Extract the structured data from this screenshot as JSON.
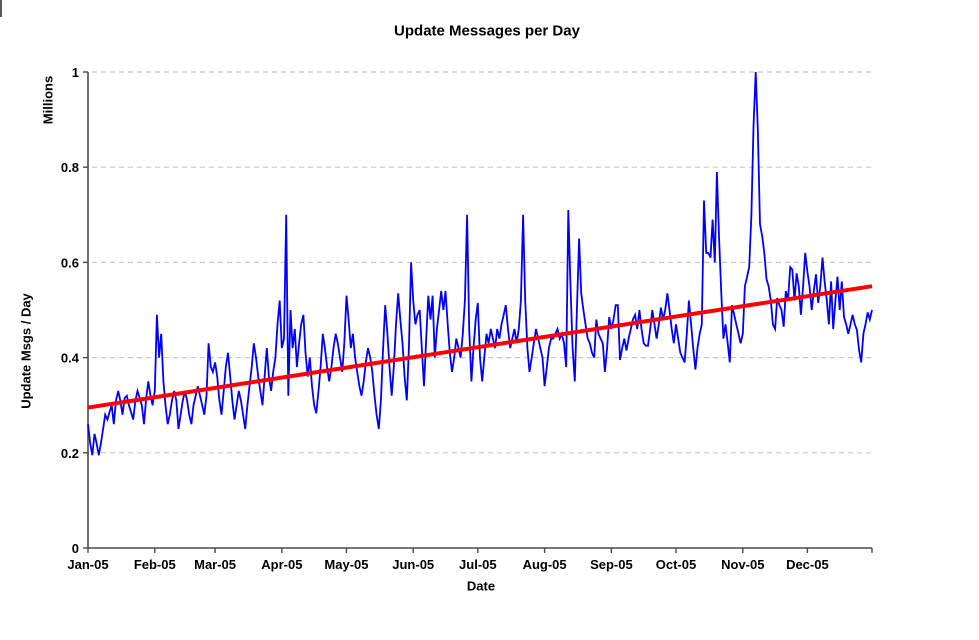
{
  "chart": {
    "title": "Update Messages per Day",
    "x_axis_title": "Date",
    "y_axis_title": "Update Msgs / Day",
    "y_units_label": "Millions",
    "colors": {
      "series_line": "#0000ff",
      "trend_line": "#ff0000",
      "gridline": "#c8c8c8",
      "axis": "#4a4a4a",
      "text": "#000000",
      "background": "#ffffff"
    }
  },
  "chart_data": {
    "type": "line",
    "title": "Update Messages per Day",
    "xlabel": "Date",
    "ylabel": "Update Msgs / Day",
    "y_units": "Millions",
    "ylim": [
      0,
      1
    ],
    "y_ticks": [
      0,
      0.2,
      0.4,
      0.6,
      0.8,
      1
    ],
    "y_tick_labels": [
      "0",
      "0.2",
      "0.4",
      "0.6",
      "0.8",
      "1"
    ],
    "x_tick_labels": [
      "Jan-05",
      "Feb-05",
      "Mar-05",
      "Apr-05",
      "May-05",
      "Jun-05",
      "Jul-05",
      "Aug-05",
      "Sep-05",
      "Oct-05",
      "Nov-05",
      "Dec-05"
    ],
    "month_start_days": [
      1,
      32,
      60,
      91,
      121,
      152,
      182,
      213,
      244,
      274,
      305,
      335
    ],
    "grid": "horizontal-dashed",
    "legend": "none",
    "x_unit": "daily values, Jan-05 through Dec-05",
    "series": [
      {
        "name": "Update Msgs / Day (Millions)",
        "color": "#0000ff",
        "values": [
          0.26,
          0.22,
          0.195,
          0.24,
          0.22,
          0.195,
          0.22,
          0.25,
          0.28,
          0.27,
          0.285,
          0.3,
          0.26,
          0.31,
          0.33,
          0.31,
          0.28,
          0.315,
          0.32,
          0.3,
          0.285,
          0.27,
          0.31,
          0.33,
          0.315,
          0.3,
          0.26,
          0.315,
          0.35,
          0.32,
          0.3,
          0.33,
          0.49,
          0.4,
          0.45,
          0.35,
          0.3,
          0.26,
          0.28,
          0.31,
          0.33,
          0.31,
          0.25,
          0.28,
          0.31,
          0.33,
          0.31,
          0.28,
          0.26,
          0.3,
          0.32,
          0.34,
          0.32,
          0.3,
          0.28,
          0.32,
          0.43,
          0.38,
          0.37,
          0.39,
          0.36,
          0.31,
          0.28,
          0.33,
          0.38,
          0.41,
          0.36,
          0.31,
          0.27,
          0.3,
          0.33,
          0.31,
          0.28,
          0.25,
          0.3,
          0.34,
          0.38,
          0.43,
          0.4,
          0.36,
          0.33,
          0.3,
          0.36,
          0.42,
          0.36,
          0.33,
          0.37,
          0.4,
          0.47,
          0.52,
          0.42,
          0.44,
          0.7,
          0.32,
          0.5,
          0.42,
          0.46,
          0.38,
          0.43,
          0.47,
          0.49,
          0.41,
          0.36,
          0.4,
          0.34,
          0.3,
          0.283,
          0.33,
          0.38,
          0.45,
          0.42,
          0.38,
          0.35,
          0.38,
          0.42,
          0.45,
          0.43,
          0.4,
          0.37,
          0.43,
          0.53,
          0.48,
          0.42,
          0.45,
          0.4,
          0.37,
          0.34,
          0.32,
          0.35,
          0.39,
          0.42,
          0.4,
          0.37,
          0.32,
          0.28,
          0.25,
          0.31,
          0.42,
          0.51,
          0.45,
          0.38,
          0.32,
          0.38,
          0.47,
          0.535,
          0.48,
          0.43,
          0.36,
          0.31,
          0.42,
          0.6,
          0.52,
          0.47,
          0.49,
          0.5,
          0.42,
          0.34,
          0.44,
          0.53,
          0.48,
          0.53,
          0.4,
          0.46,
          0.5,
          0.54,
          0.5,
          0.54,
          0.47,
          0.41,
          0.37,
          0.4,
          0.44,
          0.42,
          0.4,
          0.45,
          0.52,
          0.7,
          0.46,
          0.35,
          0.42,
          0.48,
          0.515,
          0.4,
          0.35,
          0.4,
          0.45,
          0.43,
          0.46,
          0.44,
          0.42,
          0.46,
          0.44,
          0.47,
          0.49,
          0.51,
          0.46,
          0.42,
          0.44,
          0.46,
          0.43,
          0.46,
          0.52,
          0.7,
          0.52,
          0.42,
          0.37,
          0.4,
          0.43,
          0.46,
          0.44,
          0.42,
          0.4,
          0.34,
          0.38,
          0.42,
          0.44,
          0.44,
          0.45,
          0.46,
          0.44,
          0.45,
          0.43,
          0.38,
          0.71,
          0.55,
          0.42,
          0.35,
          0.5,
          0.65,
          0.535,
          0.5,
          0.47,
          0.44,
          0.43,
          0.41,
          0.4,
          0.48,
          0.45,
          0.44,
          0.43,
          0.37,
          0.42,
          0.485,
          0.46,
          0.48,
          0.51,
          0.51,
          0.395,
          0.42,
          0.44,
          0.415,
          0.44,
          0.46,
          0.48,
          0.49,
          0.46,
          0.5,
          0.46,
          0.43,
          0.425,
          0.425,
          0.46,
          0.5,
          0.47,
          0.44,
          0.47,
          0.505,
          0.48,
          0.5,
          0.535,
          0.5,
          0.46,
          0.43,
          0.47,
          0.44,
          0.41,
          0.4,
          0.39,
          0.45,
          0.52,
          0.47,
          0.42,
          0.375,
          0.42,
          0.45,
          0.47,
          0.73,
          0.62,
          0.62,
          0.61,
          0.69,
          0.6,
          0.79,
          0.65,
          0.54,
          0.44,
          0.47,
          0.43,
          0.39,
          0.51,
          0.49,
          0.47,
          0.45,
          0.43,
          0.45,
          0.55,
          0.57,
          0.59,
          0.7,
          0.885,
          1.0,
          0.88,
          0.68,
          0.655,
          0.62,
          0.565,
          0.55,
          0.52,
          0.47,
          0.46,
          0.525,
          0.51,
          0.5,
          0.465,
          0.54,
          0.52,
          0.59,
          0.585,
          0.52,
          0.577,
          0.55,
          0.49,
          0.55,
          0.62,
          0.58,
          0.55,
          0.5,
          0.54,
          0.575,
          0.515,
          0.55,
          0.61,
          0.56,
          0.52,
          0.47,
          0.56,
          0.46,
          0.52,
          0.57,
          0.5,
          0.56,
          0.485,
          0.47,
          0.45,
          0.47,
          0.49,
          0.47,
          0.458,
          0.415,
          0.39,
          0.45,
          0.47,
          0.495,
          0.48,
          0.5
        ]
      },
      {
        "name": "Linear trend",
        "color": "#ff0000",
        "trend": {
          "start": 0.295,
          "end": 0.55
        }
      }
    ]
  }
}
